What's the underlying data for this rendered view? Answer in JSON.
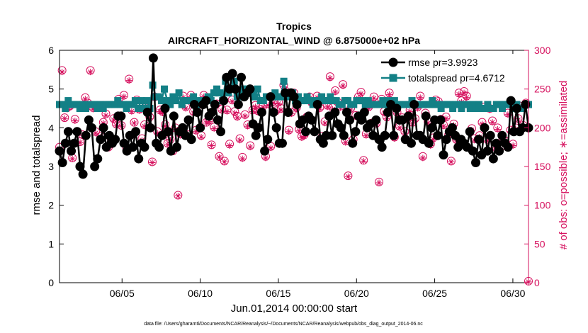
{
  "chart_data": {
    "type": "line",
    "title": "Tropics",
    "subtitle": "AIRCRAFT_HORIZONTAL_WIND @ 6.875000e+02 hPa",
    "xlabel": "Jun.01,2014 00:00:00 start",
    "ylabel_left": "rmse and totalspread",
    "ylabel_right": "# of obs: o=possible; ∗=assimilated",
    "footnote": "data file: /Users/gharamti/Documents/NCAR/Reanalysis/~/Documents/NCAR/Reanalysis/webpub/obs_diag_output_2014-06.nc",
    "xlim": [
      1,
      31
    ],
    "ylim_left": [
      0,
      6
    ],
    "ylim_right": [
      0,
      300
    ],
    "x_ticks": [
      5,
      10,
      15,
      20,
      25,
      30
    ],
    "x_tick_labels": [
      "06/05",
      "06/10",
      "06/15",
      "06/20",
      "06/25",
      "06/30"
    ],
    "y_left_ticks": [
      "0",
      "1",
      "2",
      "3",
      "4",
      "5",
      "6"
    ],
    "y_right_ticks": [
      "0",
      "50",
      "100",
      "150",
      "200",
      "250",
      "300"
    ],
    "legend": [
      "rmse pr=3.9923",
      "totalspread pr=4.6712"
    ],
    "colors": {
      "rmse": "#000000",
      "totalspread": "#138086",
      "obs": "#d6115e",
      "axis": "#000000"
    },
    "series": [
      {
        "name": "rmse",
        "values": [
          3.4,
          3.1,
          3.6,
          3.9,
          3.4,
          3.6,
          3.9,
          3.0,
          2.8,
          3.8,
          4.2,
          4.0,
          3.0,
          3.2,
          3.7,
          4.0,
          3.5,
          3.8,
          3.6,
          3.7,
          4.3,
          4.3,
          3.6,
          3.4,
          3.8,
          3.5,
          3.9,
          3.2,
          3.6,
          3.5,
          4.4,
          4.0,
          5.8,
          3.6,
          3.5,
          3.8,
          4.5,
          3.9,
          3.4,
          4.3,
          3.5,
          3.9,
          4.0,
          3.8,
          4.2,
          3.7,
          4.6,
          4.4,
          4.0,
          4.6,
          4.7,
          4.3,
          4.4,
          4.6,
          4.2,
          3.9,
          4.7,
          5.3,
          5.0,
          5.4,
          5.0,
          4.6,
          5.3,
          4.8,
          4.9,
          5.0,
          4.1,
          3.8,
          4.0,
          4.4,
          3.4,
          3.7,
          4.8,
          4.4,
          4.0,
          3.6,
          3.6,
          4.9,
          4.4,
          4.9,
          4.8,
          4.6,
          4.1,
          4.2,
          3.9,
          4.3,
          4.2,
          3.9,
          4.6,
          3.7,
          3.6,
          3.8,
          4.3,
          3.8,
          4.4,
          4.1,
          4.0,
          3.8,
          4.4,
          4.2,
          3.6,
          3.9,
          4.3,
          4.2,
          4.4,
          4.0,
          4.1,
          3.8,
          4.2,
          3.7,
          3.5,
          3.8,
          4.4,
          4.6,
          3.8,
          4.5,
          4.2,
          4.2,
          3.7,
          4.3,
          3.6,
          4.6,
          3.8,
          3.8,
          3.7,
          4.3,
          3.6,
          4.0,
          4.2,
          3.8,
          4.2,
          3.3,
          3.7,
          3.9,
          4.0,
          3.8,
          3.5,
          3.7,
          3.6,
          3.5,
          3.9,
          3.4,
          3.1,
          3.7,
          3.3,
          4.0,
          3.4,
          3.8,
          3.2,
          3.6,
          3.4,
          3.8,
          3.6,
          3.5,
          4.7,
          3.9,
          4.5,
          3.9,
          4.0,
          4.6,
          4.0
        ]
      },
      {
        "name": "totalspread",
        "values": [
          4.6,
          4.6,
          4.5,
          4.7,
          4.6,
          4.6,
          4.6,
          4.5,
          4.6,
          4.5,
          4.6,
          4.6,
          4.6,
          4.5,
          4.6,
          4.5,
          4.6,
          4.6,
          4.6,
          4.6,
          4.7,
          4.6,
          4.6,
          4.5,
          4.6,
          4.6,
          4.7,
          4.5,
          4.7,
          4.5,
          4.7,
          4.5,
          5.1,
          4.8,
          4.8,
          4.7,
          5.0,
          4.7,
          4.6,
          4.8,
          4.7,
          4.9,
          4.6,
          4.7,
          4.7,
          4.7,
          4.8,
          4.7,
          4.6,
          4.7,
          4.7,
          4.8,
          4.7,
          4.9,
          5.0,
          4.9,
          4.7,
          5.2,
          4.9,
          5.0,
          5.2,
          4.8,
          4.9,
          5.0,
          5.0,
          4.9,
          4.9,
          4.8,
          5.0,
          4.7,
          4.7,
          4.8,
          4.8,
          4.8,
          4.9,
          4.8,
          4.8,
          5.2,
          4.8,
          4.9,
          4.9,
          4.7,
          4.8,
          4.7,
          4.7,
          4.8,
          4.7,
          4.6,
          4.7,
          4.7,
          4.8,
          4.7,
          4.7,
          4.8,
          4.7,
          4.7,
          4.6,
          4.6,
          4.7,
          4.7,
          4.6,
          4.6,
          4.7,
          4.7,
          4.7,
          4.6,
          4.7,
          4.6,
          4.6,
          4.6,
          4.6,
          4.7,
          4.6,
          4.7,
          4.6,
          4.7,
          4.6,
          4.6,
          4.6,
          4.6,
          4.6,
          4.7,
          4.6,
          4.6,
          4.6,
          4.6,
          4.6,
          4.6,
          4.7,
          4.6,
          4.6,
          4.5,
          4.6,
          4.6,
          4.6,
          4.5,
          4.6,
          4.6,
          4.5,
          4.6,
          4.6,
          4.5,
          4.6,
          4.5,
          4.6,
          4.5,
          4.5,
          4.6,
          4.5,
          4.5,
          4.6,
          4.6,
          4.5,
          4.6,
          4.6,
          4.6,
          4.5,
          4.6,
          4.5,
          4.5,
          4.6,
          4.6
        ]
      },
      {
        "name": "obs_possible",
        "values": [
          175,
          274,
          213,
          226,
          228,
          161,
          211,
          195,
          182,
          191,
          239,
          232,
          274,
          226,
          195,
          227,
          189,
          207,
          218,
          175,
          186,
          212,
          205,
          237,
          203,
          242,
          174,
          263,
          223,
          207,
          236,
          224,
          186,
          204,
          230,
          214,
          156,
          240,
          195,
          223,
          221,
          204,
          180,
          185,
          170,
          200,
          113,
          192,
          241,
          227,
          191,
          242,
          221,
          197,
          230,
          190,
          242,
          207,
          210,
          178,
          201,
          231,
          163,
          224,
          157,
          223,
          179,
          236,
          221,
          215,
          186,
          162,
          217,
          204,
          177,
          223,
          229,
          222,
          224,
          228,
          163,
          231,
          176,
          234,
          222,
          233,
          225,
          255,
          247,
          197,
          220,
          245,
          226,
          198,
          189,
          191,
          214,
          240,
          232,
          195,
          241,
          226,
          189,
          208,
          229,
          266,
          226,
          248,
          233,
          228,
          256,
          183,
          138,
          225,
          185,
          216,
          240,
          246,
          158,
          192,
          227,
          206,
          240,
          206,
          130,
          237,
          221,
          214,
          245,
          230,
          188,
          220,
          202,
          213,
          195,
          211,
          223,
          207,
          212,
          227,
          241,
          163,
          219,
          208,
          179,
          187,
          236,
          234,
          211,
          204,
          214,
          191,
          157,
          205,
          185,
          245,
          235,
          247,
          241,
          264,
          199,
          186,
          229,
          190,
          207,
          227,
          185,
          225,
          209,
          175,
          200,
          174,
          186,
          183,
          219,
          197,
          179,
          200,
          212,
          228,
          203,
          232,
          2
        ]
      },
      {
        "name": "obs_assimilated",
        "values": [
          173,
          272,
          212,
          224,
          227,
          160,
          209,
          193,
          181,
          190,
          237,
          230,
          272,
          224,
          193,
          225,
          188,
          206,
          216,
          174,
          184,
          210,
          203,
          235,
          202,
          240,
          172,
          261,
          221,
          206,
          234,
          222,
          184,
          202,
          228,
          212,
          155,
          238,
          193,
          221,
          219,
          202,
          178,
          184,
          169,
          198,
          112,
          190,
          239,
          225,
          190,
          240,
          219,
          195,
          228,
          188,
          240,
          206,
          208,
          177,
          199,
          229,
          162,
          222,
          156,
          221,
          177,
          234,
          219,
          213,
          184,
          160,
          215,
          202,
          175,
          221,
          227,
          220,
          222,
          226,
          161,
          229,
          174,
          232,
          220,
          231,
          223,
          253,
          245,
          195,
          218,
          243,
          224,
          196,
          187,
          189,
          212,
          238,
          230,
          193,
          239,
          224,
          187,
          206,
          227,
          264,
          224,
          246,
          231,
          226,
          254,
          181,
          137,
          223,
          183,
          214,
          238,
          244,
          157,
          190,
          225,
          204,
          238,
          204,
          129,
          235,
          219,
          212,
          243,
          228,
          186,
          218,
          200,
          211,
          193,
          209,
          221,
          205,
          210,
          225,
          239,
          161,
          217,
          206,
          177,
          185,
          234,
          232,
          209,
          202,
          212,
          189,
          156,
          203,
          183,
          243,
          233,
          245,
          239,
          262,
          197,
          184,
          227,
          188,
          205,
          225,
          183,
          223,
          207,
          174,
          198,
          172,
          184,
          181,
          217,
          195,
          177,
          198,
          210,
          226,
          201,
          230,
          1
        ]
      }
    ]
  }
}
